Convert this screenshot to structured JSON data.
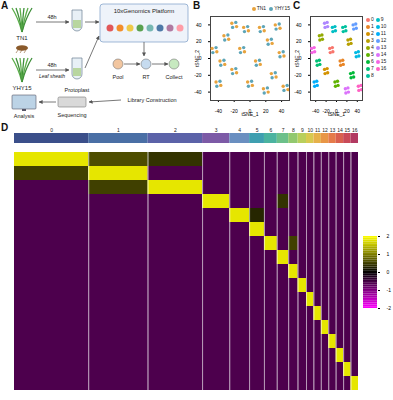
{
  "diagram": {
    "labels": {
      "panel": "A",
      "sample1": "TN1",
      "time1": "48h",
      "sample2": "YHY15",
      "time2": "48h",
      "tissue": "Leaf sheath",
      "protoplast": "Protoplast",
      "platform": "10xGenomics Platform",
      "pool": "Pool",
      "rt": "RT",
      "collect": "Collect",
      "library": "Library Construction",
      "sequencing": "Sequencing",
      "analysis": "Analysis"
    }
  },
  "chart_data": [
    {
      "type": "scatter",
      "panel": "B",
      "xlabel": "tSNE_1",
      "ylabel": "tSNE_2",
      "xlim": [
        -50,
        50
      ],
      "xticks": [
        -40,
        -20,
        0,
        20,
        40
      ],
      "ylim": [
        -50,
        50
      ],
      "yticks": [
        -40,
        -20,
        0,
        20,
        40
      ],
      "legend": "top-right",
      "series": [
        {
          "name": "TN1",
          "color": "#E8A33D",
          "x": [
            -13,
            -7,
            7,
            13,
            -23,
            -17,
            22,
            28,
            -33,
            -27,
            -3,
            3,
            27,
            33,
            -38,
            -32,
            12,
            18,
            -8,
            -2,
            37,
            43,
            -43,
            -37,
            32,
            38,
            -23,
            -17,
            17,
            23,
            -48,
            -42,
            42,
            48
          ],
          "y": [
            12,
            8,
            -3,
            -7,
            -13,
            -17,
            22,
            18,
            27,
            23,
            -28,
            -32,
            -18,
            -22,
            -3,
            -7,
            37,
            33,
            37,
            33,
            7,
            3,
            -28,
            -32,
            40,
            36,
            42,
            38,
            -36,
            -40,
            12,
            8,
            -33,
            -37
          ]
        },
        {
          "name": "YHY15",
          "color": "#5DA5B8",
          "x": [
            -8,
            -12,
            12,
            8,
            -18,
            -22,
            27,
            23,
            -28,
            -32,
            2,
            -2,
            32,
            28,
            -33,
            -37,
            17,
            13,
            -3,
            -7,
            42,
            38,
            -38,
            -42,
            37,
            33,
            -18,
            -22,
            22,
            18,
            -43,
            -47,
            47,
            43
          ],
          "y": [
            13,
            7,
            -2,
            -8,
            -12,
            -18,
            23,
            17,
            28,
            22,
            -27,
            -33,
            -17,
            -23,
            -2,
            -8,
            38,
            32,
            38,
            32,
            8,
            2,
            -27,
            -33,
            41,
            35,
            43,
            37,
            -35,
            -41,
            13,
            7,
            -32,
            -38
          ]
        }
      ]
    },
    {
      "type": "scatter",
      "panel": "C",
      "xlabel": "tSNE_1",
      "ylabel": "tSNE_2",
      "xlim": [
        -50,
        50
      ],
      "xticks": [
        -40,
        -20,
        0,
        20,
        40
      ],
      "ylim": [
        -50,
        50
      ],
      "yticks": [
        -40,
        -20,
        0,
        20,
        40
      ],
      "legend": "right",
      "series": [
        {
          "name": "0",
          "color": "#F8766D",
          "x": [
            -13,
            -8,
            -7,
            -12
          ],
          "y": [
            12,
            13,
            8,
            7
          ]
        },
        {
          "name": "1",
          "color": "#E88526",
          "x": [
            7,
            12,
            13,
            8
          ],
          "y": [
            -3,
            -2,
            -7,
            -8
          ]
        },
        {
          "name": "2",
          "color": "#D39200",
          "x": [
            -23,
            -18,
            -17,
            -22
          ],
          "y": [
            -13,
            -12,
            -17,
            -18
          ]
        },
        {
          "name": "3",
          "color": "#B79F00",
          "x": [
            22,
            27,
            28,
            23
          ],
          "y": [
            22,
            23,
            18,
            17
          ]
        },
        {
          "name": "4",
          "color": "#93AA00",
          "x": [
            -33,
            -28,
            -27,
            -32
          ],
          "y": [
            27,
            28,
            23,
            22
          ]
        },
        {
          "name": "5",
          "color": "#5EB300",
          "x": [
            -3,
            2,
            3,
            -2
          ],
          "y": [
            -28,
            -27,
            -32,
            -33
          ]
        },
        {
          "name": "6",
          "color": "#00BA38",
          "x": [
            27,
            32,
            33,
            28
          ],
          "y": [
            -18,
            -17,
            -22,
            -23
          ]
        },
        {
          "name": "7",
          "color": "#00BF74",
          "x": [
            -38,
            -33,
            -32,
            -37
          ],
          "y": [
            -3,
            -2,
            -7,
            -8
          ]
        },
        {
          "name": "8",
          "color": "#00C19F",
          "x": [
            12,
            17,
            18,
            13
          ],
          "y": [
            37,
            38,
            33,
            32
          ]
        },
        {
          "name": "9",
          "color": "#00BFC4",
          "x": [
            -8,
            -3,
            -2,
            -7
          ],
          "y": [
            37,
            38,
            33,
            32
          ]
        },
        {
          "name": "10",
          "color": "#00B9E3",
          "x": [
            37,
            42,
            43,
            38
          ],
          "y": [
            7,
            8,
            3,
            2
          ]
        },
        {
          "name": "11",
          "color": "#00ADFA",
          "x": [
            -43,
            -38,
            -37,
            -42
          ],
          "y": [
            -28,
            -27,
            -32,
            -33
          ]
        },
        {
          "name": "12",
          "color": "#619CFF",
          "x": [
            32,
            37,
            38,
            33
          ],
          "y": [
            40,
            41,
            36,
            35
          ]
        },
        {
          "name": "13",
          "color": "#AE87FF",
          "x": [
            -23,
            -18,
            -17,
            -22
          ],
          "y": [
            42,
            43,
            38,
            37
          ]
        },
        {
          "name": "14",
          "color": "#DB72FB",
          "x": [
            17,
            22,
            23,
            18
          ],
          "y": [
            -36,
            -35,
            -40,
            -41
          ]
        },
        {
          "name": "15",
          "color": "#F564E3",
          "x": [
            -48,
            -43,
            -42,
            -47
          ],
          "y": [
            12,
            13,
            8,
            7
          ]
        },
        {
          "name": "16",
          "color": "#FF61C3",
          "x": [
            42,
            47,
            48,
            43
          ],
          "y": [
            -33,
            -32,
            -37,
            -38
          ]
        }
      ]
    },
    {
      "type": "heatmap",
      "panel": "D",
      "categories": [
        "0",
        "1",
        "2",
        "3",
        "4",
        "5",
        "6",
        "7",
        "8",
        "9",
        "10",
        "11",
        "12",
        "13",
        "14",
        "15",
        "16"
      ],
      "cell_counts": [
        1500,
        1200,
        1100,
        550,
        400,
        300,
        260,
        230,
        190,
        170,
        150,
        150,
        150,
        150,
        150,
        150,
        150
      ],
      "colors": [
        "#3b4f8a",
        "#4a6fa5",
        "#5b62a8",
        "#7c5aa6",
        "#6a8fc0",
        "#3f9fb0",
        "#4bb3a0",
        "#6cc08a",
        "#92c86f",
        "#b9cf5c",
        "#d8c94f",
        "#e6b14a",
        "#e89646",
        "#e57b4a",
        "#d9604f",
        "#c94a58",
        "#b23a62"
      ],
      "values": [
        [
          1.8,
          0.6,
          0.4,
          -0.6,
          -0.6,
          -0.6,
          -0.6,
          -0.6,
          -0.6,
          -0.6,
          -0.6,
          -0.6,
          -0.6,
          -0.6,
          -0.6,
          -0.6,
          -0.6
        ],
        [
          0.5,
          1.8,
          -0.6,
          -0.6,
          -0.6,
          -0.6,
          -0.6,
          -0.6,
          -0.6,
          -0.6,
          -0.6,
          -0.6,
          -0.6,
          -0.6,
          -0.6,
          -0.6,
          -0.6
        ],
        [
          -0.6,
          0.5,
          1.8,
          -0.6,
          -0.6,
          -0.6,
          -0.6,
          -0.6,
          -0.6,
          -0.6,
          -0.6,
          -0.6,
          -0.6,
          -0.6,
          -0.6,
          -0.6,
          -0.6
        ],
        [
          -0.6,
          -0.6,
          -0.6,
          1.8,
          -0.6,
          -0.6,
          -0.6,
          0.4,
          -0.6,
          -0.6,
          -0.6,
          -0.6,
          -0.6,
          -0.6,
          -0.6,
          -0.6,
          -0.6
        ],
        [
          -0.6,
          -0.6,
          -0.6,
          -0.6,
          1.8,
          0.3,
          -0.6,
          -0.6,
          -0.6,
          -0.6,
          -0.6,
          -0.6,
          -0.6,
          -0.6,
          -0.6,
          -0.6,
          -0.6
        ],
        [
          -0.6,
          -0.6,
          -0.6,
          -0.6,
          -0.6,
          1.8,
          -0.6,
          -0.6,
          -0.6,
          -0.6,
          -0.6,
          -0.6,
          -0.6,
          -0.6,
          -0.6,
          -0.6,
          -0.6
        ],
        [
          -0.6,
          -0.6,
          -0.6,
          -0.6,
          -0.6,
          -0.6,
          1.8,
          -0.6,
          0.5,
          -0.6,
          -0.6,
          -0.6,
          -0.6,
          -0.6,
          -0.6,
          -0.6,
          -0.6
        ],
        [
          -0.6,
          -0.6,
          -0.6,
          -0.6,
          -0.6,
          -0.6,
          -0.6,
          1.8,
          -0.6,
          -0.6,
          -0.6,
          -0.6,
          -0.6,
          -0.6,
          -0.6,
          -0.6,
          -0.6
        ],
        [
          -0.6,
          -0.6,
          -0.6,
          -0.6,
          -0.6,
          -0.6,
          -0.6,
          -0.6,
          1.8,
          -0.6,
          -0.6,
          -0.6,
          -0.6,
          -0.6,
          -0.6,
          -0.6,
          -0.6
        ],
        [
          -0.6,
          -0.6,
          -0.6,
          -0.6,
          -0.6,
          -0.6,
          -0.6,
          -0.6,
          -0.6,
          1.8,
          -0.6,
          -0.6,
          -0.6,
          -0.6,
          -0.6,
          -0.6,
          -0.6
        ],
        [
          -0.6,
          -0.6,
          -0.6,
          -0.6,
          -0.6,
          -0.6,
          -0.6,
          -0.6,
          -0.6,
          -0.6,
          1.8,
          -0.6,
          -0.6,
          -0.6,
          -0.6,
          -0.6,
          -0.6
        ],
        [
          -0.6,
          -0.6,
          -0.6,
          -0.6,
          -0.6,
          -0.6,
          -0.6,
          -0.6,
          -0.6,
          -0.6,
          -0.6,
          1.8,
          -0.6,
          -0.6,
          -0.6,
          -0.6,
          -0.6
        ],
        [
          -0.6,
          -0.6,
          -0.6,
          -0.6,
          -0.6,
          -0.6,
          -0.6,
          -0.6,
          -0.6,
          -0.6,
          -0.6,
          -0.6,
          1.8,
          -0.6,
          -0.6,
          -0.6,
          -0.6
        ],
        [
          -0.6,
          -0.6,
          -0.6,
          -0.6,
          -0.6,
          -0.6,
          -0.6,
          -0.6,
          -0.6,
          -0.6,
          -0.6,
          -0.6,
          -0.6,
          1.8,
          -0.6,
          -0.6,
          -0.6
        ],
        [
          -0.6,
          -0.6,
          -0.6,
          -0.6,
          -0.6,
          -0.6,
          -0.6,
          -0.6,
          -0.6,
          -0.6,
          -0.6,
          -0.6,
          -0.6,
          -0.6,
          1.8,
          -0.6,
          -0.6
        ],
        [
          -0.6,
          -0.6,
          -0.6,
          -0.6,
          -0.6,
          -0.6,
          -0.6,
          -0.6,
          -0.6,
          -0.6,
          -0.6,
          -0.6,
          -0.6,
          -0.6,
          -0.6,
          1.8,
          -0.6
        ],
        [
          -0.6,
          -0.6,
          -0.6,
          -0.6,
          -0.6,
          -0.6,
          -0.6,
          -0.6,
          -0.6,
          -0.6,
          -0.6,
          -0.6,
          -0.6,
          -0.6,
          -0.6,
          -0.6,
          1.8
        ]
      ],
      "colorbar": {
        "range": [
          -2,
          2
        ],
        "ticks": [
          -2,
          -1,
          0,
          1,
          2
        ]
      }
    }
  ]
}
